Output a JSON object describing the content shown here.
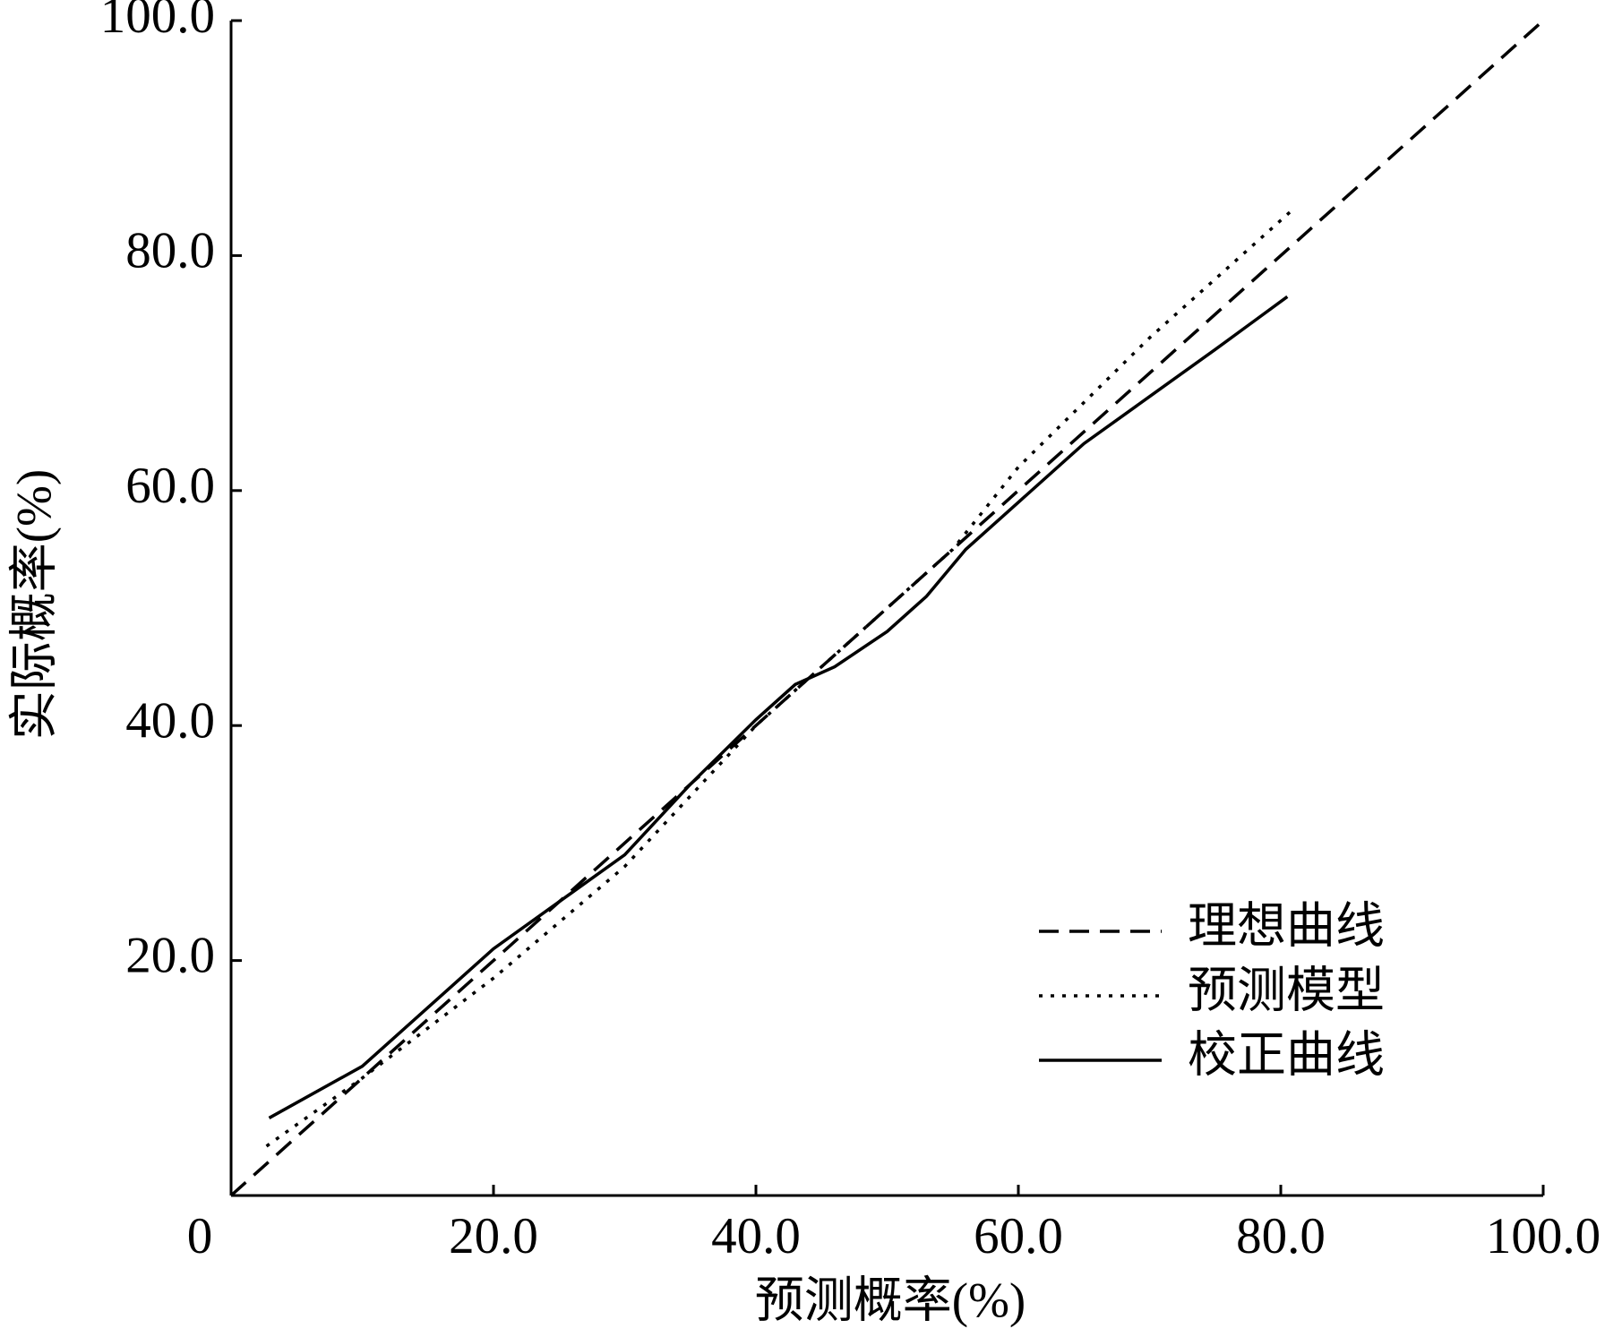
{
  "chart_data": {
    "type": "line",
    "x_label": "预测概率(%)",
    "y_label": "实际概率(%)",
    "xlim": [
      0,
      100
    ],
    "ylim": [
      0,
      100
    ],
    "xticks": [
      0,
      {
        "value": 20,
        "label": "20.0"
      },
      {
        "value": 40,
        "label": "40.0"
      },
      {
        "value": 60,
        "label": "60.0"
      },
      {
        "value": 80,
        "label": "80.0"
      },
      {
        "value": 100,
        "label": "100.0"
      }
    ],
    "yticks": [
      {
        "value": 20,
        "label": "20.0"
      },
      {
        "value": 40,
        "label": "40.0"
      },
      {
        "value": 60,
        "label": "60.0"
      },
      {
        "value": 80,
        "label": "80.0"
      },
      {
        "value": 100,
        "label": "100.0"
      }
    ],
    "legend": "lower right",
    "series": [
      {
        "name": "理想曲线",
        "color": "#000000",
        "style": "dashed",
        "x": [
          0,
          100
        ],
        "values": [
          0,
          100
        ]
      },
      {
        "name": "预测模型",
        "color": "#000000",
        "style": "dotted",
        "x": [
          2.7,
          10,
          20,
          30,
          40,
          45,
          50,
          55,
          60,
          70,
          81
        ],
        "values": [
          4.2,
          10,
          18.5,
          28,
          40,
          45,
          50,
          55,
          62,
          73,
          84
        ]
      },
      {
        "name": "校正曲线",
        "color": "#000000",
        "style": "solid",
        "x": [
          2.9,
          10,
          20,
          30,
          35,
          40,
          43,
          46,
          50,
          53,
          56,
          60,
          65,
          70,
          75,
          80.5
        ],
        "values": [
          6.6,
          11,
          21,
          29,
          35,
          40.5,
          43.5,
          45,
          48,
          51,
          55,
          59,
          64,
          68,
          72,
          76.5
        ]
      }
    ]
  }
}
